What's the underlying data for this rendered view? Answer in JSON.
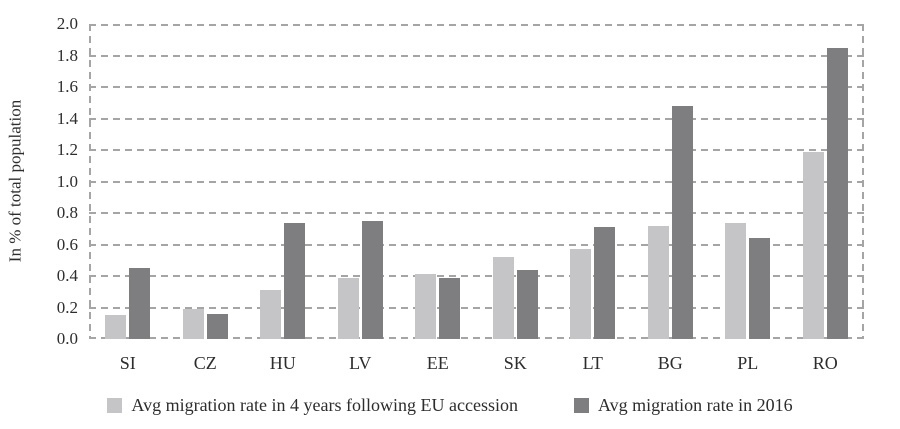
{
  "chart_data": {
    "type": "bar",
    "title": "",
    "xlabel": "",
    "ylabel": "In % of total population",
    "ylim": [
      0,
      2.0
    ],
    "yticks": [
      "0.0",
      "0.2",
      "0.4",
      "0.6",
      "0.8",
      "1.0",
      "1.2",
      "1.4",
      "1.6",
      "1.8",
      "2.0"
    ],
    "grid": "horizontal-dashed",
    "plot_border": "dashed-left-right-top-bottom",
    "legend_position": "bottom",
    "categories": [
      "SI",
      "CZ",
      "HU",
      "LV",
      "EE",
      "SK",
      "LT",
      "BG",
      "PL",
      "RO"
    ],
    "series": [
      {
        "name": "Avg migration rate in 4 years following EU accession",
        "color": "#c5c5c7",
        "values": [
          0.15,
          0.19,
          0.31,
          0.39,
          0.41,
          0.52,
          0.57,
          0.72,
          0.74,
          1.19
        ]
      },
      {
        "name": "Avg migration rate in 2016",
        "color": "#7e7e81",
        "values": [
          0.45,
          0.16,
          0.74,
          0.75,
          0.39,
          0.44,
          0.71,
          1.48,
          0.64,
          1.85
        ]
      }
    ],
    "gridline_color": "#a5a5a5",
    "text_color": "#2d2d2d",
    "background_color": "#ffffff"
  }
}
